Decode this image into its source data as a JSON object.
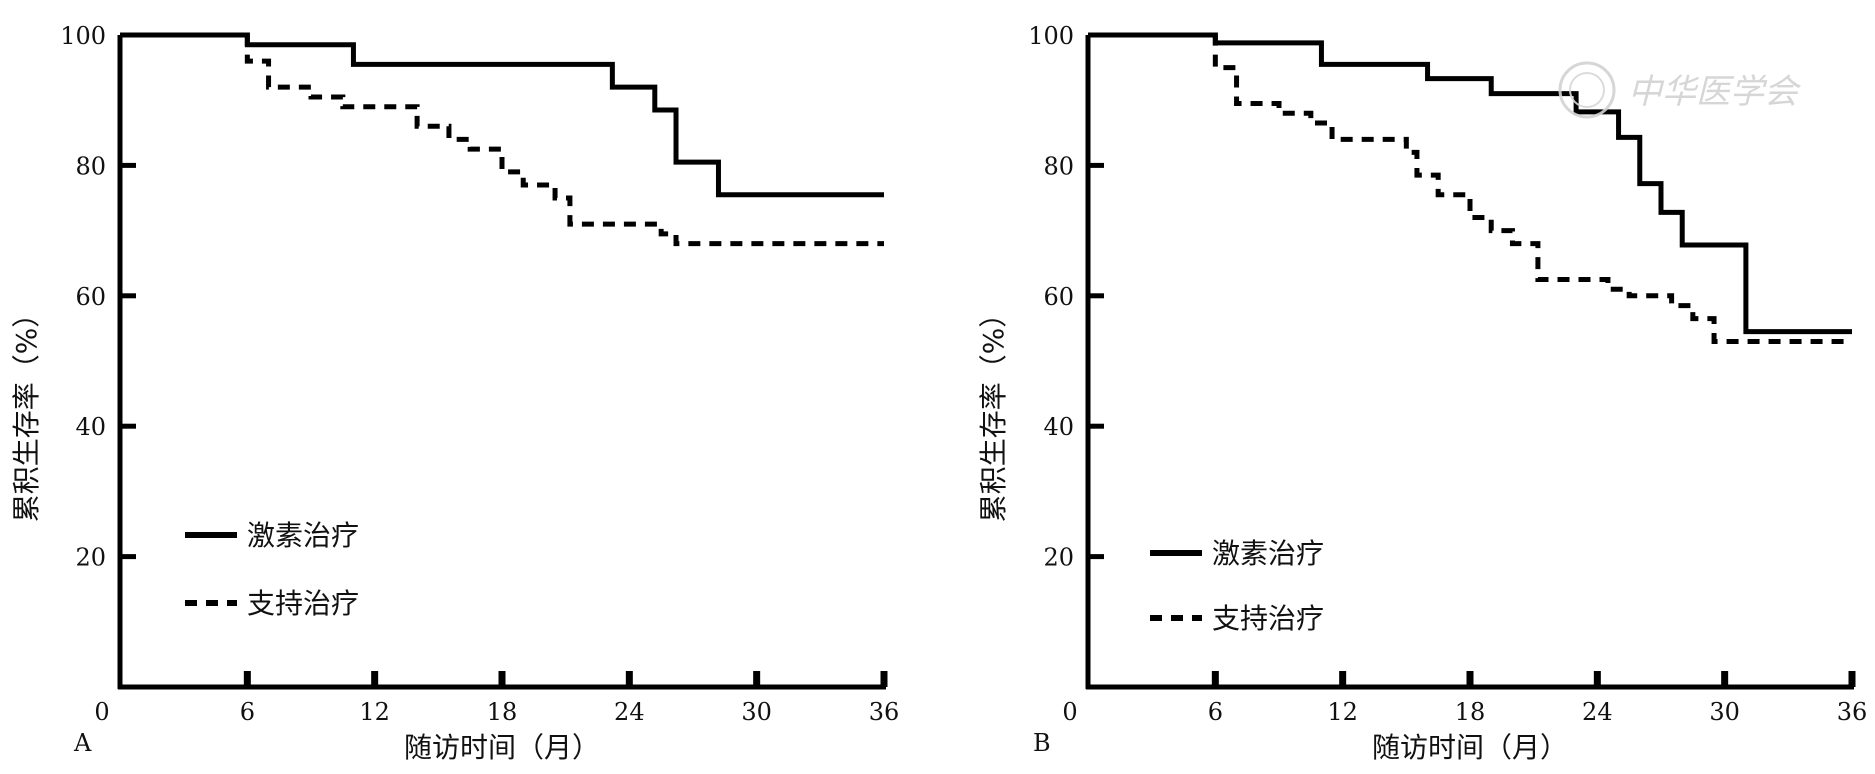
{
  "watermark": "中华医学会",
  "chart_data": [
    {
      "type": "line",
      "step": true,
      "panel_label": "A",
      "xlabel": "随访时间（月）",
      "ylabel": "累积生存率（%）",
      "xlim": [
        0,
        36
      ],
      "ylim": [
        0,
        100
      ],
      "xticks": [
        0,
        6,
        12,
        18,
        24,
        30,
        36
      ],
      "yticks": [
        20,
        40,
        60,
        80,
        100
      ],
      "legend_position": "bottom-left",
      "series": [
        {
          "name": "激素治疗",
          "style": "solid",
          "color": "#000000",
          "x": [
            0,
            6,
            11,
            23.2,
            25.2,
            26.2,
            28.2,
            36
          ],
          "y": [
            100,
            98.5,
            95.5,
            92,
            88.5,
            80.5,
            75.5,
            75.5
          ]
        },
        {
          "name": "支持治疗",
          "style": "dashed",
          "color": "#000000",
          "x": [
            0,
            6,
            7,
            9,
            10.5,
            14,
            15.5,
            16.5,
            18,
            19,
            20.5,
            21.2,
            25.5,
            26.2,
            36
          ],
          "y": [
            100,
            96,
            92,
            90.5,
            89,
            86,
            84,
            82.5,
            79,
            77,
            75,
            71,
            69.5,
            68,
            68
          ]
        }
      ]
    },
    {
      "type": "line",
      "step": true,
      "panel_label": "B",
      "xlabel": "随访时间（月）",
      "ylabel": "累积生存率（%）",
      "xlim": [
        0,
        36
      ],
      "ylim": [
        0,
        100
      ],
      "xticks": [
        0,
        6,
        12,
        18,
        24,
        30,
        36
      ],
      "yticks": [
        20,
        40,
        60,
        80,
        100
      ],
      "legend_position": "bottom-left",
      "series": [
        {
          "name": "激素治疗",
          "style": "solid",
          "color": "#000000",
          "x": [
            0,
            6,
            11,
            16,
            19,
            23,
            25,
            26,
            27,
            28,
            31,
            36
          ],
          "y": [
            100,
            98.8,
            95.5,
            93.3,
            91,
            88.2,
            84.3,
            77.2,
            72.8,
            67.8,
            54.5,
            54.5
          ]
        },
        {
          "name": "支持治疗",
          "style": "dashed",
          "color": "#000000",
          "x": [
            0,
            6,
            7,
            9,
            10.5,
            11.5,
            15,
            15.5,
            16.5,
            18,
            19,
            20,
            21.2,
            24.5,
            25.5,
            27.5,
            28.5,
            29.5,
            36
          ],
          "y": [
            100,
            95,
            89.5,
            88,
            86.5,
            84,
            82,
            78.5,
            75.5,
            72,
            70,
            68,
            62.5,
            61,
            60,
            58.5,
            56.5,
            53,
            53
          ]
        }
      ]
    }
  ]
}
